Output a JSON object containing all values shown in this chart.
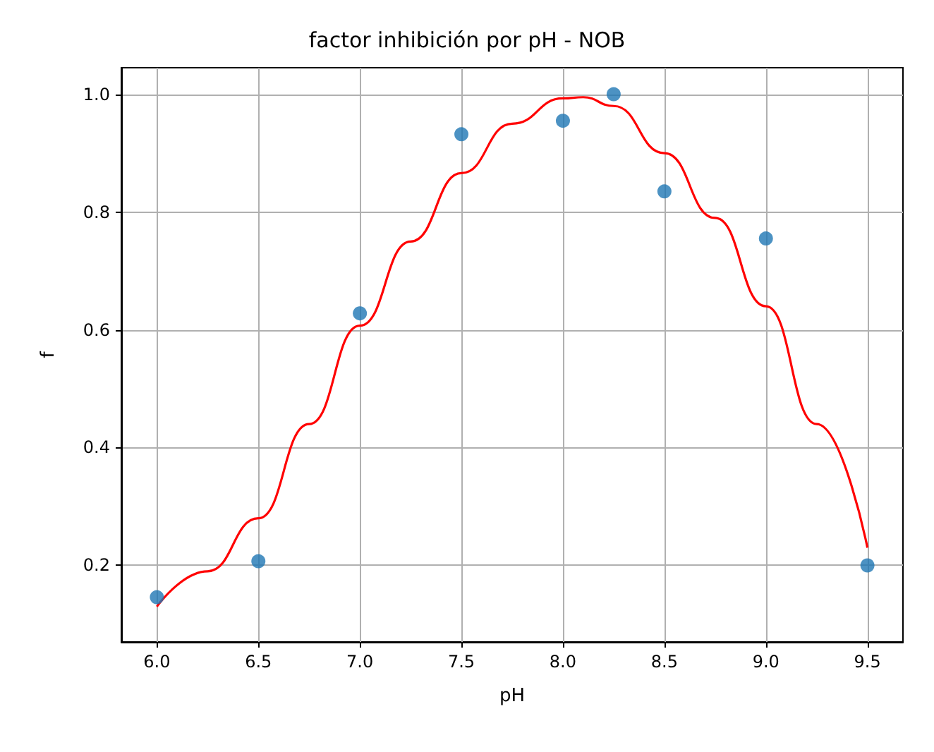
{
  "chart_data": {
    "type": "scatter",
    "title": "factor inhibición por pH - NOB",
    "xlabel": "pH",
    "ylabel": "f",
    "x": [
      6.0,
      6.5,
      7.0,
      7.5,
      8.0,
      8.25,
      8.5,
      9.0,
      9.5
    ],
    "series": [
      {
        "color": "#1f77b4",
        "values": [
          0.146,
          0.207,
          0.628,
          0.932,
          0.955,
          1.0,
          0.835,
          0.755,
          0.2
        ]
      },
      {
        "type": "line",
        "color": "#ff0000",
        "marker": "none",
        "x": [
          6.0,
          6.25,
          6.5,
          6.75,
          7.0,
          7.25,
          7.5,
          7.75,
          8.0,
          8.1,
          8.25,
          8.5,
          8.75,
          9.0,
          9.25,
          9.5
        ],
        "values": [
          0.13,
          0.19,
          0.28,
          0.44,
          0.607,
          0.75,
          0.866,
          0.95,
          0.993,
          0.995,
          0.98,
          0.9,
          0.79,
          0.64,
          0.44,
          0.23
        ]
      }
    ],
    "xlim": [
      5.825,
      9.675
    ],
    "ylim": [
      0.07,
      1.045
    ],
    "xticks": [
      {
        "value": 6,
        "label": "6.0"
      },
      {
        "value": 6.5,
        "label": "6.5"
      },
      {
        "value": 7,
        "label": "7.0"
      },
      {
        "value": 7.5,
        "label": "7.5"
      },
      {
        "value": 8,
        "label": "8.0"
      },
      {
        "value": 8.5,
        "label": "8.5"
      },
      {
        "value": 9,
        "label": "9.0"
      },
      {
        "value": 9.5,
        "label": "9.5"
      }
    ],
    "yticks": [
      {
        "value": 0.2,
        "label": "0.2"
      },
      {
        "value": 0.4,
        "label": "0.4"
      },
      {
        "value": 0.6,
        "label": "0.6"
      },
      {
        "value": 0.8,
        "label": "0.8"
      },
      {
        "value": 1,
        "label": "1.0"
      }
    ],
    "grid": true,
    "marker": "circle"
  }
}
